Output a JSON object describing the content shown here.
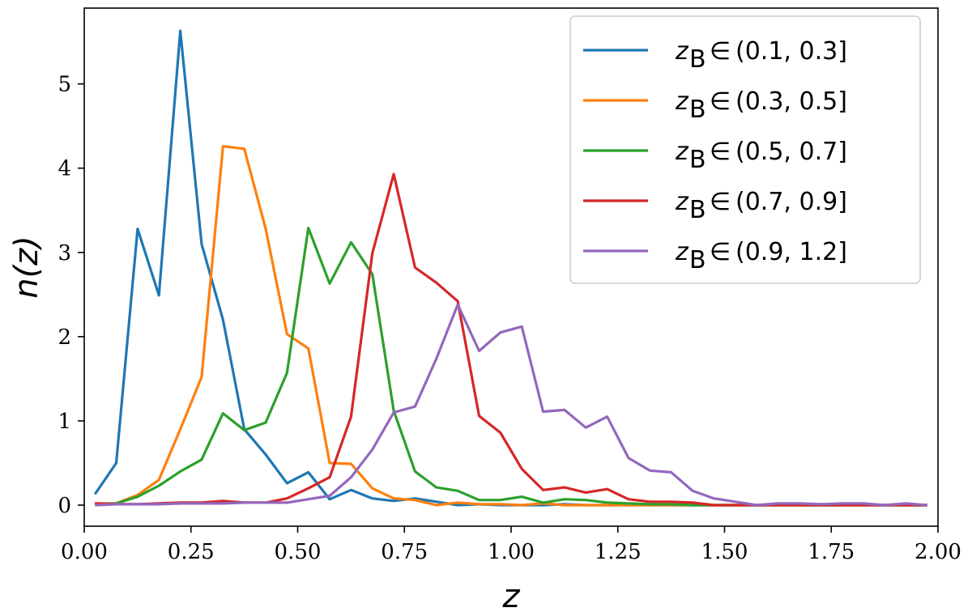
{
  "chart_data": {
    "type": "line",
    "xlabel": "z",
    "ylabel": "n(z)",
    "xlim": [
      0.0,
      2.0
    ],
    "ylim": [
      -0.25,
      5.9
    ],
    "xticks": [
      "0.00",
      "0.25",
      "0.50",
      "0.75",
      "1.00",
      "1.25",
      "1.50",
      "1.75",
      "2.00"
    ],
    "yticks": [
      "0",
      "1",
      "2",
      "3",
      "4",
      "5"
    ],
    "legend_position": "top-right",
    "x": [
      0.025,
      0.075,
      0.125,
      0.175,
      0.225,
      0.275,
      0.325,
      0.375,
      0.425,
      0.475,
      0.525,
      0.575,
      0.625,
      0.675,
      0.725,
      0.775,
      0.825,
      0.875,
      0.925,
      0.975,
      1.025,
      1.075,
      1.125,
      1.175,
      1.225,
      1.275,
      1.325,
      1.375,
      1.425,
      1.475,
      1.525,
      1.575,
      1.625,
      1.675,
      1.725,
      1.775,
      1.825,
      1.875,
      1.925,
      1.975
    ],
    "series": [
      {
        "name": "(0.1, 0.3]",
        "color": "#1f77b4",
        "values": [
          0.13,
          0.5,
          3.28,
          2.49,
          5.63,
          3.1,
          2.2,
          0.9,
          0.6,
          0.26,
          0.39,
          0.07,
          0.18,
          0.08,
          0.05,
          0.08,
          0.04,
          0.0,
          0.01,
          0.0,
          0.0,
          0.0,
          0.01,
          0.0,
          0.0,
          0.0,
          0.0,
          0.0,
          0.0,
          0.0,
          0.0,
          0.0,
          0.0,
          0.0,
          0.0,
          0.0,
          0.0,
          0.0,
          0.0,
          0.0
        ]
      },
      {
        "name": "(0.3, 0.5]",
        "color": "#ff7f0e",
        "values": [
          0.02,
          0.02,
          0.12,
          0.3,
          0.9,
          1.52,
          4.26,
          4.23,
          3.28,
          2.03,
          1.86,
          0.5,
          0.49,
          0.2,
          0.08,
          0.06,
          0.0,
          0.03,
          0.01,
          0.01,
          0.0,
          0.02,
          0.0,
          0.0,
          0.0,
          0.0,
          0.0,
          0.0,
          0.0,
          0.0,
          0.0,
          0.0,
          0.0,
          0.0,
          0.0,
          0.0,
          0.0,
          0.0,
          0.0,
          0.0
        ]
      },
      {
        "name": "(0.5, 0.7]",
        "color": "#2ca02c",
        "values": [
          0.01,
          0.02,
          0.1,
          0.23,
          0.4,
          0.54,
          1.09,
          0.89,
          0.98,
          1.57,
          3.29,
          2.63,
          3.12,
          2.74,
          1.12,
          0.4,
          0.21,
          0.17,
          0.06,
          0.06,
          0.1,
          0.03,
          0.07,
          0.06,
          0.03,
          0.02,
          0.01,
          0.01,
          0.0,
          0.0,
          0.0,
          0.0,
          0.0,
          0.0,
          0.0,
          0.0,
          0.0,
          0.0,
          0.0,
          0.0
        ]
      },
      {
        "name": "(0.7, 0.9]",
        "color": "#d62728",
        "values": [
          0.02,
          0.01,
          0.01,
          0.02,
          0.03,
          0.03,
          0.05,
          0.03,
          0.03,
          0.08,
          0.2,
          0.33,
          1.05,
          2.99,
          3.93,
          2.82,
          2.64,
          2.42,
          1.06,
          0.86,
          0.43,
          0.18,
          0.21,
          0.15,
          0.19,
          0.07,
          0.04,
          0.04,
          0.03,
          0.0,
          0.0,
          0.0,
          0.0,
          0.0,
          0.0,
          0.0,
          0.0,
          0.0,
          0.0,
          0.0
        ]
      },
      {
        "name": "(0.9, 1.2]",
        "color": "#9467bd",
        "values": [
          0.0,
          0.01,
          0.01,
          0.01,
          0.02,
          0.02,
          0.02,
          0.03,
          0.03,
          0.03,
          0.07,
          0.11,
          0.33,
          0.66,
          1.1,
          1.17,
          1.74,
          2.38,
          1.83,
          2.05,
          2.12,
          1.11,
          1.13,
          0.92,
          1.05,
          0.56,
          0.41,
          0.39,
          0.17,
          0.08,
          0.04,
          0.0,
          0.02,
          0.02,
          0.01,
          0.02,
          0.02,
          0.0,
          0.02,
          0.0
        ]
      }
    ]
  }
}
